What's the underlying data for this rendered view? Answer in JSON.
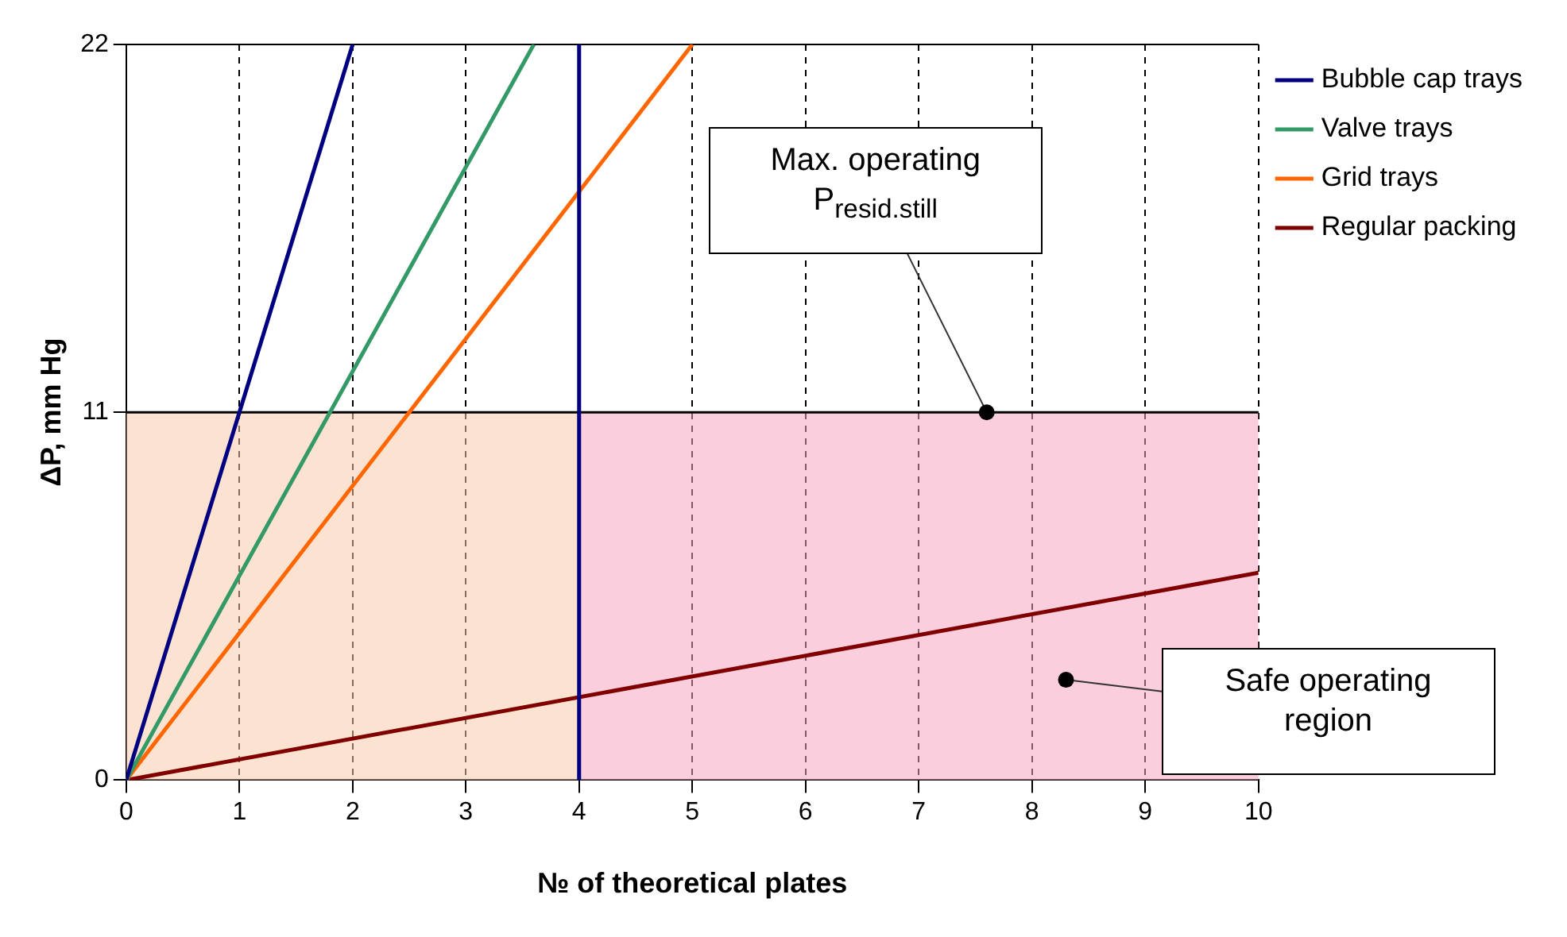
{
  "chart_data": {
    "type": "line",
    "xlabel": "№ of theoretical plates",
    "ylabel": "ΔP, mm Hg",
    "xlim": [
      0,
      10
    ],
    "ylim": [
      0,
      22
    ],
    "xticks": [
      0,
      1,
      2,
      3,
      4,
      5,
      6,
      7,
      8,
      9,
      10
    ],
    "yticks": [
      0,
      11,
      22
    ],
    "grid": true,
    "legend": "top right",
    "marker": "none",
    "line_style": "solid",
    "series": [
      {
        "type": "area",
        "color": "#f9c9a8",
        "x": [
          0,
          4
        ],
        "values": [
          11,
          11
        ]
      },
      {
        "type": "area",
        "color": "#f5a3bf",
        "x": [
          4,
          10
        ],
        "values": [
          11,
          11
        ]
      },
      {
        "name": "Bubble cap trays",
        "color": "#000080",
        "x": [
          0,
          2
        ],
        "values": [
          0,
          22
        ]
      },
      {
        "name": "Valve trays",
        "color": "#339966",
        "x": [
          0,
          3.6
        ],
        "values": [
          0,
          22
        ]
      },
      {
        "name": "Grid trays",
        "color": "#ff6600",
        "x": [
          0,
          5
        ],
        "values": [
          0,
          22
        ]
      },
      {
        "name": "Regular packing",
        "color": "#800000",
        "x": [
          0,
          10
        ],
        "values": [
          0,
          6.2
        ]
      }
    ],
    "ref_lines": [
      {
        "axis": "x",
        "value": 4,
        "color": "#000080"
      }
    ],
    "annotations": [
      {
        "text": "Max. operating P$_{resid.still}$",
        "x": 7.6,
        "y": 11
      },
      {
        "text": "Safe operating region",
        "x": 8.3,
        "y": 3
      }
    ]
  }
}
